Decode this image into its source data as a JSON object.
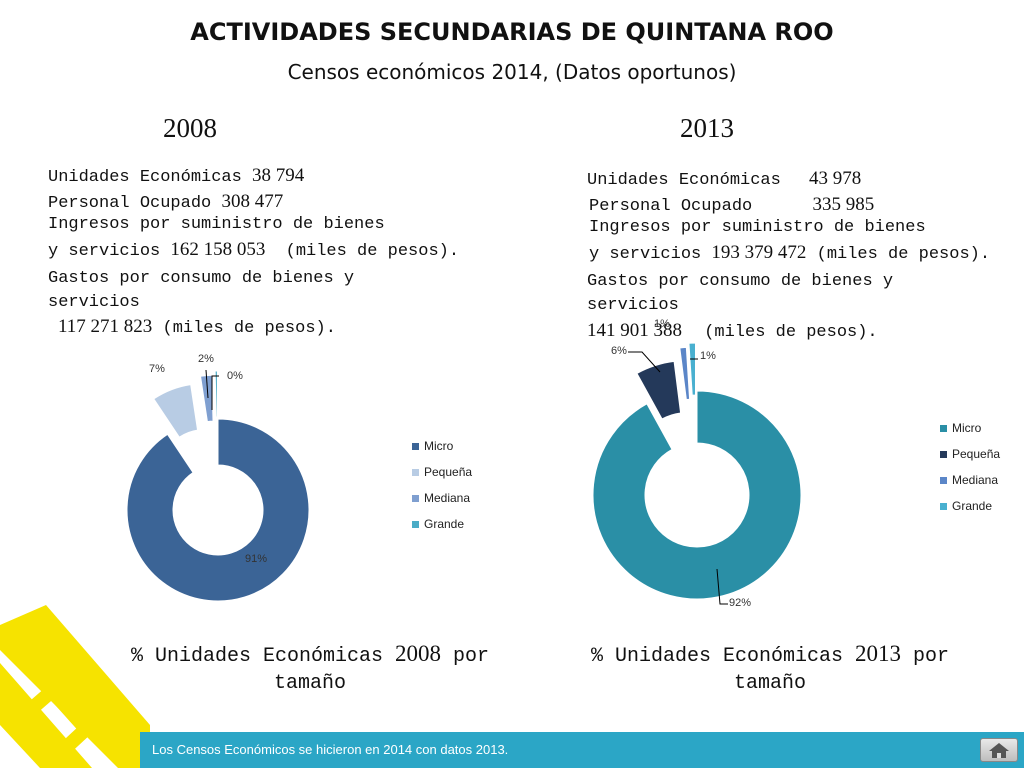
{
  "header": {
    "title": "ACTIVIDADES SECUNDARIAS DE QUINTANA ROO",
    "subtitle": "Censos económicos 2014, (Datos oportunos)"
  },
  "left": {
    "year": "2008",
    "ue_label": "Unidades Económicas",
    "ue_value": "38 794",
    "po_label": "Personal Ocupado",
    "po_value": "308 477",
    "ing_label_1": "Ingresos por suministro de bienes",
    "ing_label_2": "y servicios",
    "ing_value": "162 158 053",
    "ing_unit": "(miles de pesos).",
    "gas_label_1": "Gastos por consumo de bienes y",
    "gas_label_2": "servicios",
    "gas_value": "117 271 823",
    "gas_unit": "(miles de pesos).",
    "caption_1": "% Unidades Económicas",
    "caption_year": "2008",
    "caption_2": "por",
    "caption_3": "tamaño"
  },
  "right": {
    "year": "2013",
    "ue_label": "Unidades Económicas",
    "ue_value": "43 978",
    "po_label": "Personal Ocupado",
    "po_value": "335 985",
    "ing_label_1": "Ingresos por suministro de bienes",
    "ing_label_2": "y servicios",
    "ing_value": "193 379 472",
    "ing_unit": "(miles de pesos).",
    "gas_label_1": "Gastos por consumo de bienes y",
    "gas_label_2": "servicios",
    "gas_value": "141 901 388",
    "gas_unit": "(miles de pesos).",
    "caption_1": "% Unidades Económicas",
    "caption_year": "2013",
    "caption_2": "por",
    "caption_3": "tamaño"
  },
  "footer": {
    "text": "Los Censos Económicos se hicieron en 2014 con datos 2013."
  },
  "chart_data": [
    {
      "type": "pie",
      "donut": true,
      "exploded": true,
      "title": "",
      "categories": [
        "Micro",
        "Pequeña",
        "Mediana",
        "Grande"
      ],
      "values": [
        91,
        7,
        2,
        0.4
      ],
      "labels": [
        "91%",
        "7%",
        "2%",
        "0%"
      ],
      "colors": [
        "#3b6496",
        "#b8cce4",
        "#7f9fd0",
        "#4bacc6"
      ],
      "legend": "right"
    },
    {
      "type": "pie",
      "donut": true,
      "exploded": true,
      "title": "",
      "categories": [
        "Micro",
        "Pequeña",
        "Mediana",
        "Grande"
      ],
      "values": [
        92,
        6,
        1,
        1
      ],
      "labels": [
        "92%",
        "6%",
        "1%",
        "1%"
      ],
      "colors": [
        "#2a8fa6",
        "#24395a",
        "#5b86c8",
        "#49b0d0"
      ],
      "legend": "right"
    }
  ]
}
